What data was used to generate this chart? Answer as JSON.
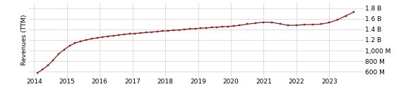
{
  "ylabel": "Revenues (TTM)",
  "x_years": [
    2014.1,
    2014.25,
    2014.42,
    2014.58,
    2014.75,
    2014.92,
    2015.08,
    2015.25,
    2015.42,
    2015.58,
    2015.75,
    2015.92,
    2016.08,
    2016.25,
    2016.42,
    2016.58,
    2016.75,
    2016.92,
    2017.08,
    2017.25,
    2017.42,
    2017.58,
    2017.75,
    2017.92,
    2018.08,
    2018.25,
    2018.42,
    2018.58,
    2018.75,
    2018.92,
    2019.08,
    2019.25,
    2019.42,
    2019.58,
    2019.75,
    2019.92,
    2020.08,
    2020.25,
    2020.5,
    2020.75,
    2021.0,
    2021.25,
    2021.5,
    2021.75,
    2022.0,
    2022.25,
    2022.5,
    2022.75,
    2023.0,
    2023.25,
    2023.5,
    2023.75
  ],
  "y_values_M": [
    580,
    640,
    720,
    820,
    940,
    1020,
    1090,
    1140,
    1175,
    1200,
    1220,
    1240,
    1255,
    1270,
    1280,
    1292,
    1305,
    1315,
    1322,
    1332,
    1340,
    1350,
    1358,
    1368,
    1375,
    1382,
    1390,
    1398,
    1408,
    1415,
    1420,
    1428,
    1435,
    1442,
    1448,
    1455,
    1462,
    1475,
    1498,
    1518,
    1535,
    1530,
    1505,
    1475,
    1478,
    1488,
    1492,
    1498,
    1528,
    1578,
    1655,
    1725
  ],
  "line_color": "#8B1A1A",
  "marker": "s",
  "marker_size": 2.0,
  "linewidth": 0.9,
  "background_color": "#ffffff",
  "grid_color": "#d0d0d0",
  "xlim": [
    2013.85,
    2024.05
  ],
  "ylim_M": [
    500,
    1900
  ],
  "yticks_M": [
    600,
    800,
    1000,
    1200,
    1400,
    1600,
    1800
  ],
  "ytick_labels": [
    "600 M",
    "800 M",
    "1,000 M",
    "1.2 B",
    "1.4 B",
    "1.6 B",
    "1.8 B"
  ],
  "xticks": [
    2014,
    2015,
    2016,
    2017,
    2018,
    2019,
    2020,
    2021,
    2022,
    2023
  ],
  "tick_fontsize": 6.5,
  "ylabel_fontsize": 6.5
}
